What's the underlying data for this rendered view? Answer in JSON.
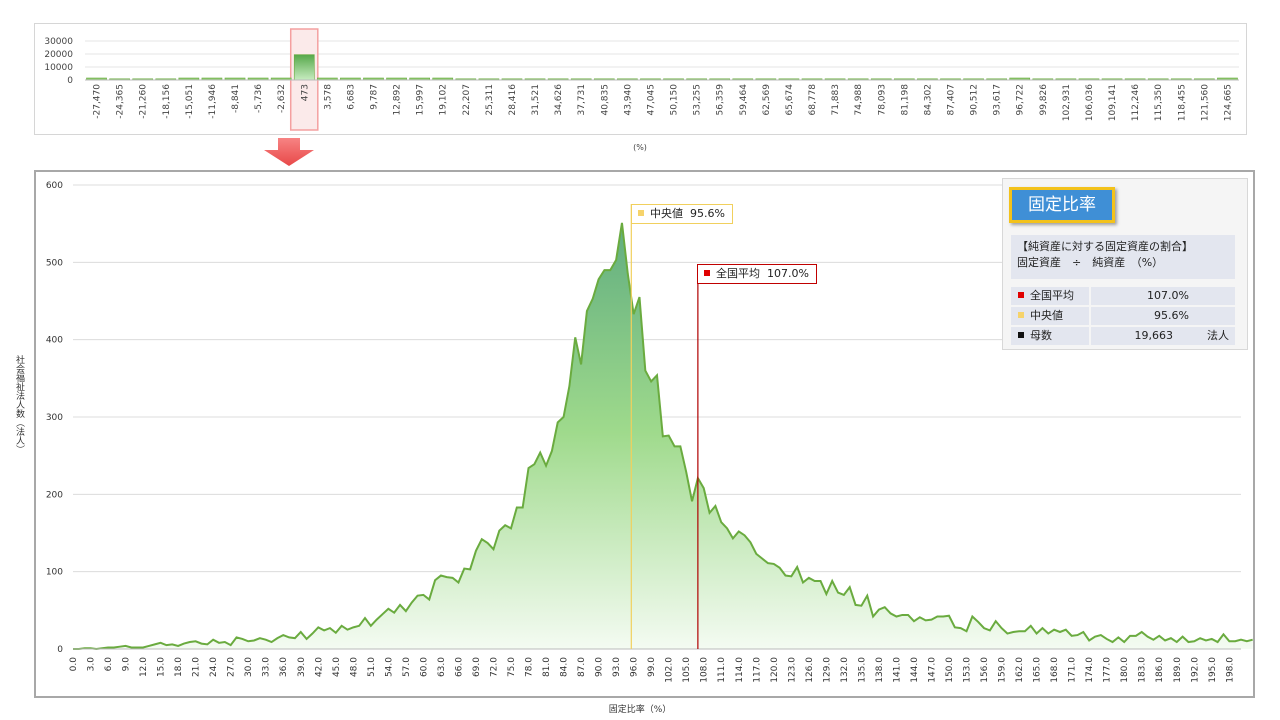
{
  "top_chart": {
    "x_unit_label": "(%)",
    "y_ticks": [
      "30000",
      "20000",
      "10000",
      "0"
    ],
    "ylim": [
      0,
      30000
    ],
    "x_tick_labels": [
      "-27,470",
      "-24,365",
      "-21,260",
      "-18,156",
      "-15,051",
      "-11,946",
      "-8,841",
      "-5,736",
      "-2,632",
      "473",
      "3,578",
      "6,683",
      "9,787",
      "12,892",
      "15,997",
      "19,102",
      "22,207",
      "25,311",
      "28,416",
      "31,521",
      "34,626",
      "37,731",
      "40,835",
      "43,940",
      "47,045",
      "50,150",
      "53,255",
      "56,359",
      "59,464",
      "62,569",
      "65,674",
      "68,778",
      "71,883",
      "74,988",
      "78,093",
      "81,198",
      "84,302",
      "87,407",
      "90,512",
      "93,617",
      "96,722",
      "99,826",
      "102,931",
      "106,036",
      "109,141",
      "112,246",
      "115,350",
      "118,455",
      "121,560",
      "124,665"
    ]
  },
  "main_chart": {
    "xlabel": "固定比率（%）",
    "ylabel": "社会福祉法人数（法人）",
    "y_ticks": [
      "600",
      "500",
      "400",
      "300",
      "200",
      "100",
      "0"
    ],
    "median_label": "中央値",
    "median_text": "95.6%",
    "mean_label": "全国平均",
    "mean_text": "107.0%"
  },
  "legend": {
    "title": "固定比率",
    "desc_line1": "【純資産に対する固定資産の割合】",
    "desc_line2": "固定資産　÷　純資産　（%）",
    "rows": [
      {
        "label": "全国平均",
        "value": "107.0%",
        "unit": "",
        "color": "#e00000"
      },
      {
        "label": "中央値",
        "value": "95.6%",
        "unit": "",
        "color": "#f6d36b"
      },
      {
        "label": "母数",
        "value": "19,663",
        "unit": "法人",
        "color": "#111111"
      }
    ]
  },
  "colors": {
    "line": "#6aab3f",
    "fill_top": "#5fac7f",
    "fill_mid": "#9fda8c",
    "median": "#f1d05d",
    "mean": "#b00000",
    "highlight": "#f4a0a0",
    "arrow": "#ef5a5a"
  },
  "chart_data": [
    {
      "type": "bar",
      "title": "",
      "xlabel": "(%)",
      "ylabel": "",
      "ylim": [
        0,
        30000
      ],
      "categories": [
        "-27,470",
        "-24,365",
        "-21,260",
        "-18,156",
        "-15,051",
        "-11,946",
        "-8,841",
        "-5,736",
        "-2,632",
        "473",
        "3,578",
        "6,683",
        "9,787",
        "12,892",
        "15,997",
        "19,102",
        "22,207",
        "25,311",
        "28,416",
        "31,521",
        "34,626",
        "37,731",
        "40,835",
        "43,940",
        "47,045",
        "50,150",
        "53,255",
        "56,359",
        "59,464",
        "62,569",
        "65,674",
        "68,778",
        "71,883",
        "74,988",
        "78,093",
        "81,198",
        "84,302",
        "87,407",
        "90,512",
        "93,617",
        "96,722",
        "99,826",
        "102,931",
        "106,036",
        "109,141",
        "112,246",
        "115,350",
        "118,455",
        "121,560",
        "124,665"
      ],
      "values": [
        2,
        0,
        0,
        0,
        1,
        1,
        1,
        1,
        1,
        19500,
        3,
        2,
        2,
        1,
        1,
        1,
        0,
        0,
        0,
        0,
        0,
        0,
        0,
        0,
        0,
        0,
        0,
        0,
        0,
        0,
        0,
        0,
        0,
        0,
        0,
        0,
        0,
        0,
        0,
        0,
        1,
        0,
        0,
        0,
        0,
        0,
        0,
        0,
        0,
        2
      ]
    },
    {
      "type": "area",
      "title": "",
      "xlabel": "固定比率（%）",
      "ylabel": "社会福祉法人数（法人）",
      "ylim": [
        0,
        600
      ],
      "xlim": [
        0,
        200
      ],
      "x_step": 1,
      "x_start": 0,
      "values": [
        0,
        0,
        1,
        1,
        0,
        1,
        2,
        2,
        3,
        4,
        2,
        2,
        2,
        4,
        6,
        8,
        5,
        6,
        4,
        7,
        9,
        10,
        7,
        6,
        12,
        8,
        9,
        5,
        15,
        13,
        10,
        11,
        14,
        12,
        9,
        14,
        18,
        15,
        14,
        22,
        13,
        20,
        28,
        24,
        27,
        21,
        30,
        25,
        28,
        30,
        40,
        30,
        38,
        45,
        52,
        47,
        57,
        49,
        60,
        69,
        70,
        64,
        89,
        95,
        93,
        92,
        86,
        104,
        103,
        127,
        142,
        137,
        129,
        153,
        160,
        156,
        183,
        183,
        234,
        239,
        254,
        237,
        256,
        293,
        300,
        340,
        403,
        368,
        437,
        453,
        478,
        490,
        490,
        503,
        551,
        485,
        433,
        455,
        360,
        346,
        354,
        275,
        276,
        262,
        262,
        229,
        191,
        221,
        208,
        176,
        185,
        164,
        156,
        143,
        152,
        147,
        138,
        123,
        117,
        111,
        110,
        105,
        95,
        94,
        106,
        86,
        92,
        88,
        88,
        71,
        88,
        73,
        70,
        80,
        57,
        56,
        69,
        42,
        51,
        54,
        46,
        42,
        44,
        44,
        36,
        41,
        37,
        38,
        42,
        42,
        43,
        28,
        27,
        23,
        42,
        35,
        27,
        24,
        36,
        27,
        20,
        22,
        23,
        23,
        30,
        20,
        27,
        20,
        25,
        22,
        25,
        17,
        18,
        22,
        11,
        16,
        18,
        13,
        9,
        15,
        9,
        17,
        17,
        22,
        16,
        12,
        17,
        11,
        14,
        9,
        16,
        9,
        10,
        14,
        11,
        13,
        9,
        19,
        10,
        10,
        12,
        10,
        12
      ]
    }
  ]
}
